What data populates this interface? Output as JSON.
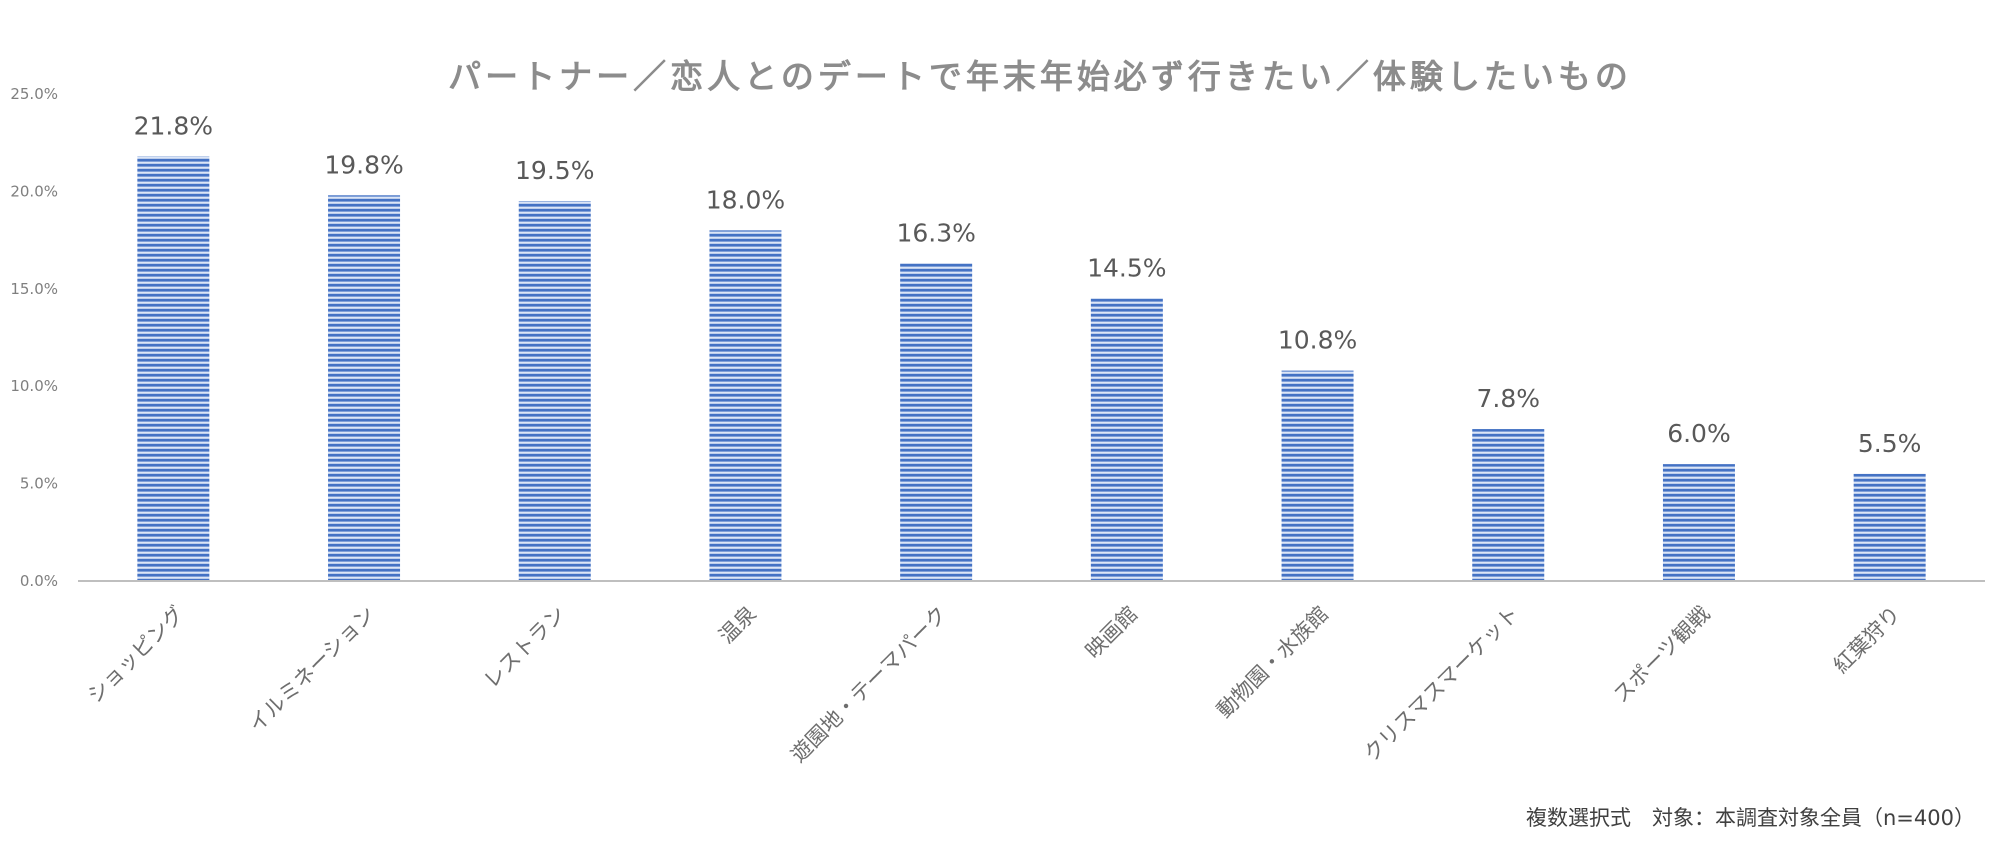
{
  "chart_data": {
    "type": "bar",
    "title": "パートナー／恋人とのデートで年末年始必ず行きたい／体験したいもの",
    "categories": [
      "ショッピング",
      "イルミネーション",
      "レストラン",
      "温泉",
      "遊園地・テーマパーク",
      "映画館",
      "動物園・水族館",
      "クリスマスマーケット",
      "スポーツ観戦",
      "紅葉狩り"
    ],
    "values": [
      21.8,
      19.8,
      19.5,
      18.0,
      16.3,
      14.5,
      10.8,
      7.8,
      6.0,
      5.5
    ],
    "data_labels": [
      "21.8%",
      "19.8%",
      "19.5%",
      "18.0%",
      "16.3%",
      "14.5%",
      "10.8%",
      "7.8%",
      "6.0%",
      "5.5%"
    ],
    "y_ticks": [
      "0.0%",
      "5.0%",
      "10.0%",
      "15.0%",
      "20.0%",
      "25.0%"
    ],
    "ylim": [
      0,
      25
    ],
    "xlabel": "",
    "ylabel": "",
    "grid": false,
    "bar_color": "#4472c4",
    "bar_stripe_color": "#dbe5f7"
  },
  "footnote": "複数選択式　対象：本調査対象全員（n=400）"
}
